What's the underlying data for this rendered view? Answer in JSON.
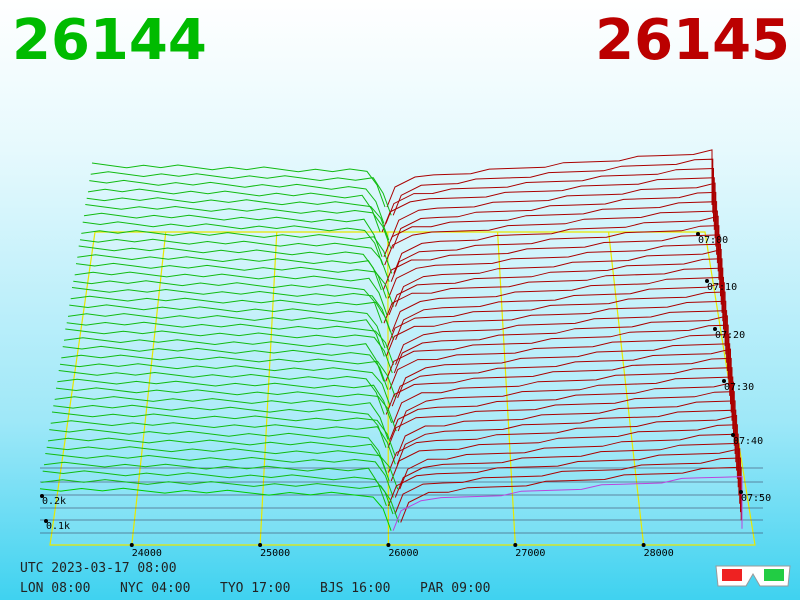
{
  "header": {
    "bid": "26144",
    "ask": "26145"
  },
  "price_axis": {
    "ticks": [
      "24000",
      "25000",
      "26000",
      "27000",
      "28000"
    ]
  },
  "time_axis": {
    "ticks": [
      "07:00",
      "07:10",
      "07:20",
      "07:30",
      "07:40",
      "07:50"
    ]
  },
  "volume_axis": {
    "ticks": [
      "0.2k",
      "0.1k"
    ]
  },
  "footer": {
    "utc": "UTC 2023-03-17 08:00",
    "clocks": [
      "LON 08:00",
      "NYC 04:00",
      "TYO 17:00",
      "BJS 16:00",
      "PAR 09:00"
    ]
  }
}
